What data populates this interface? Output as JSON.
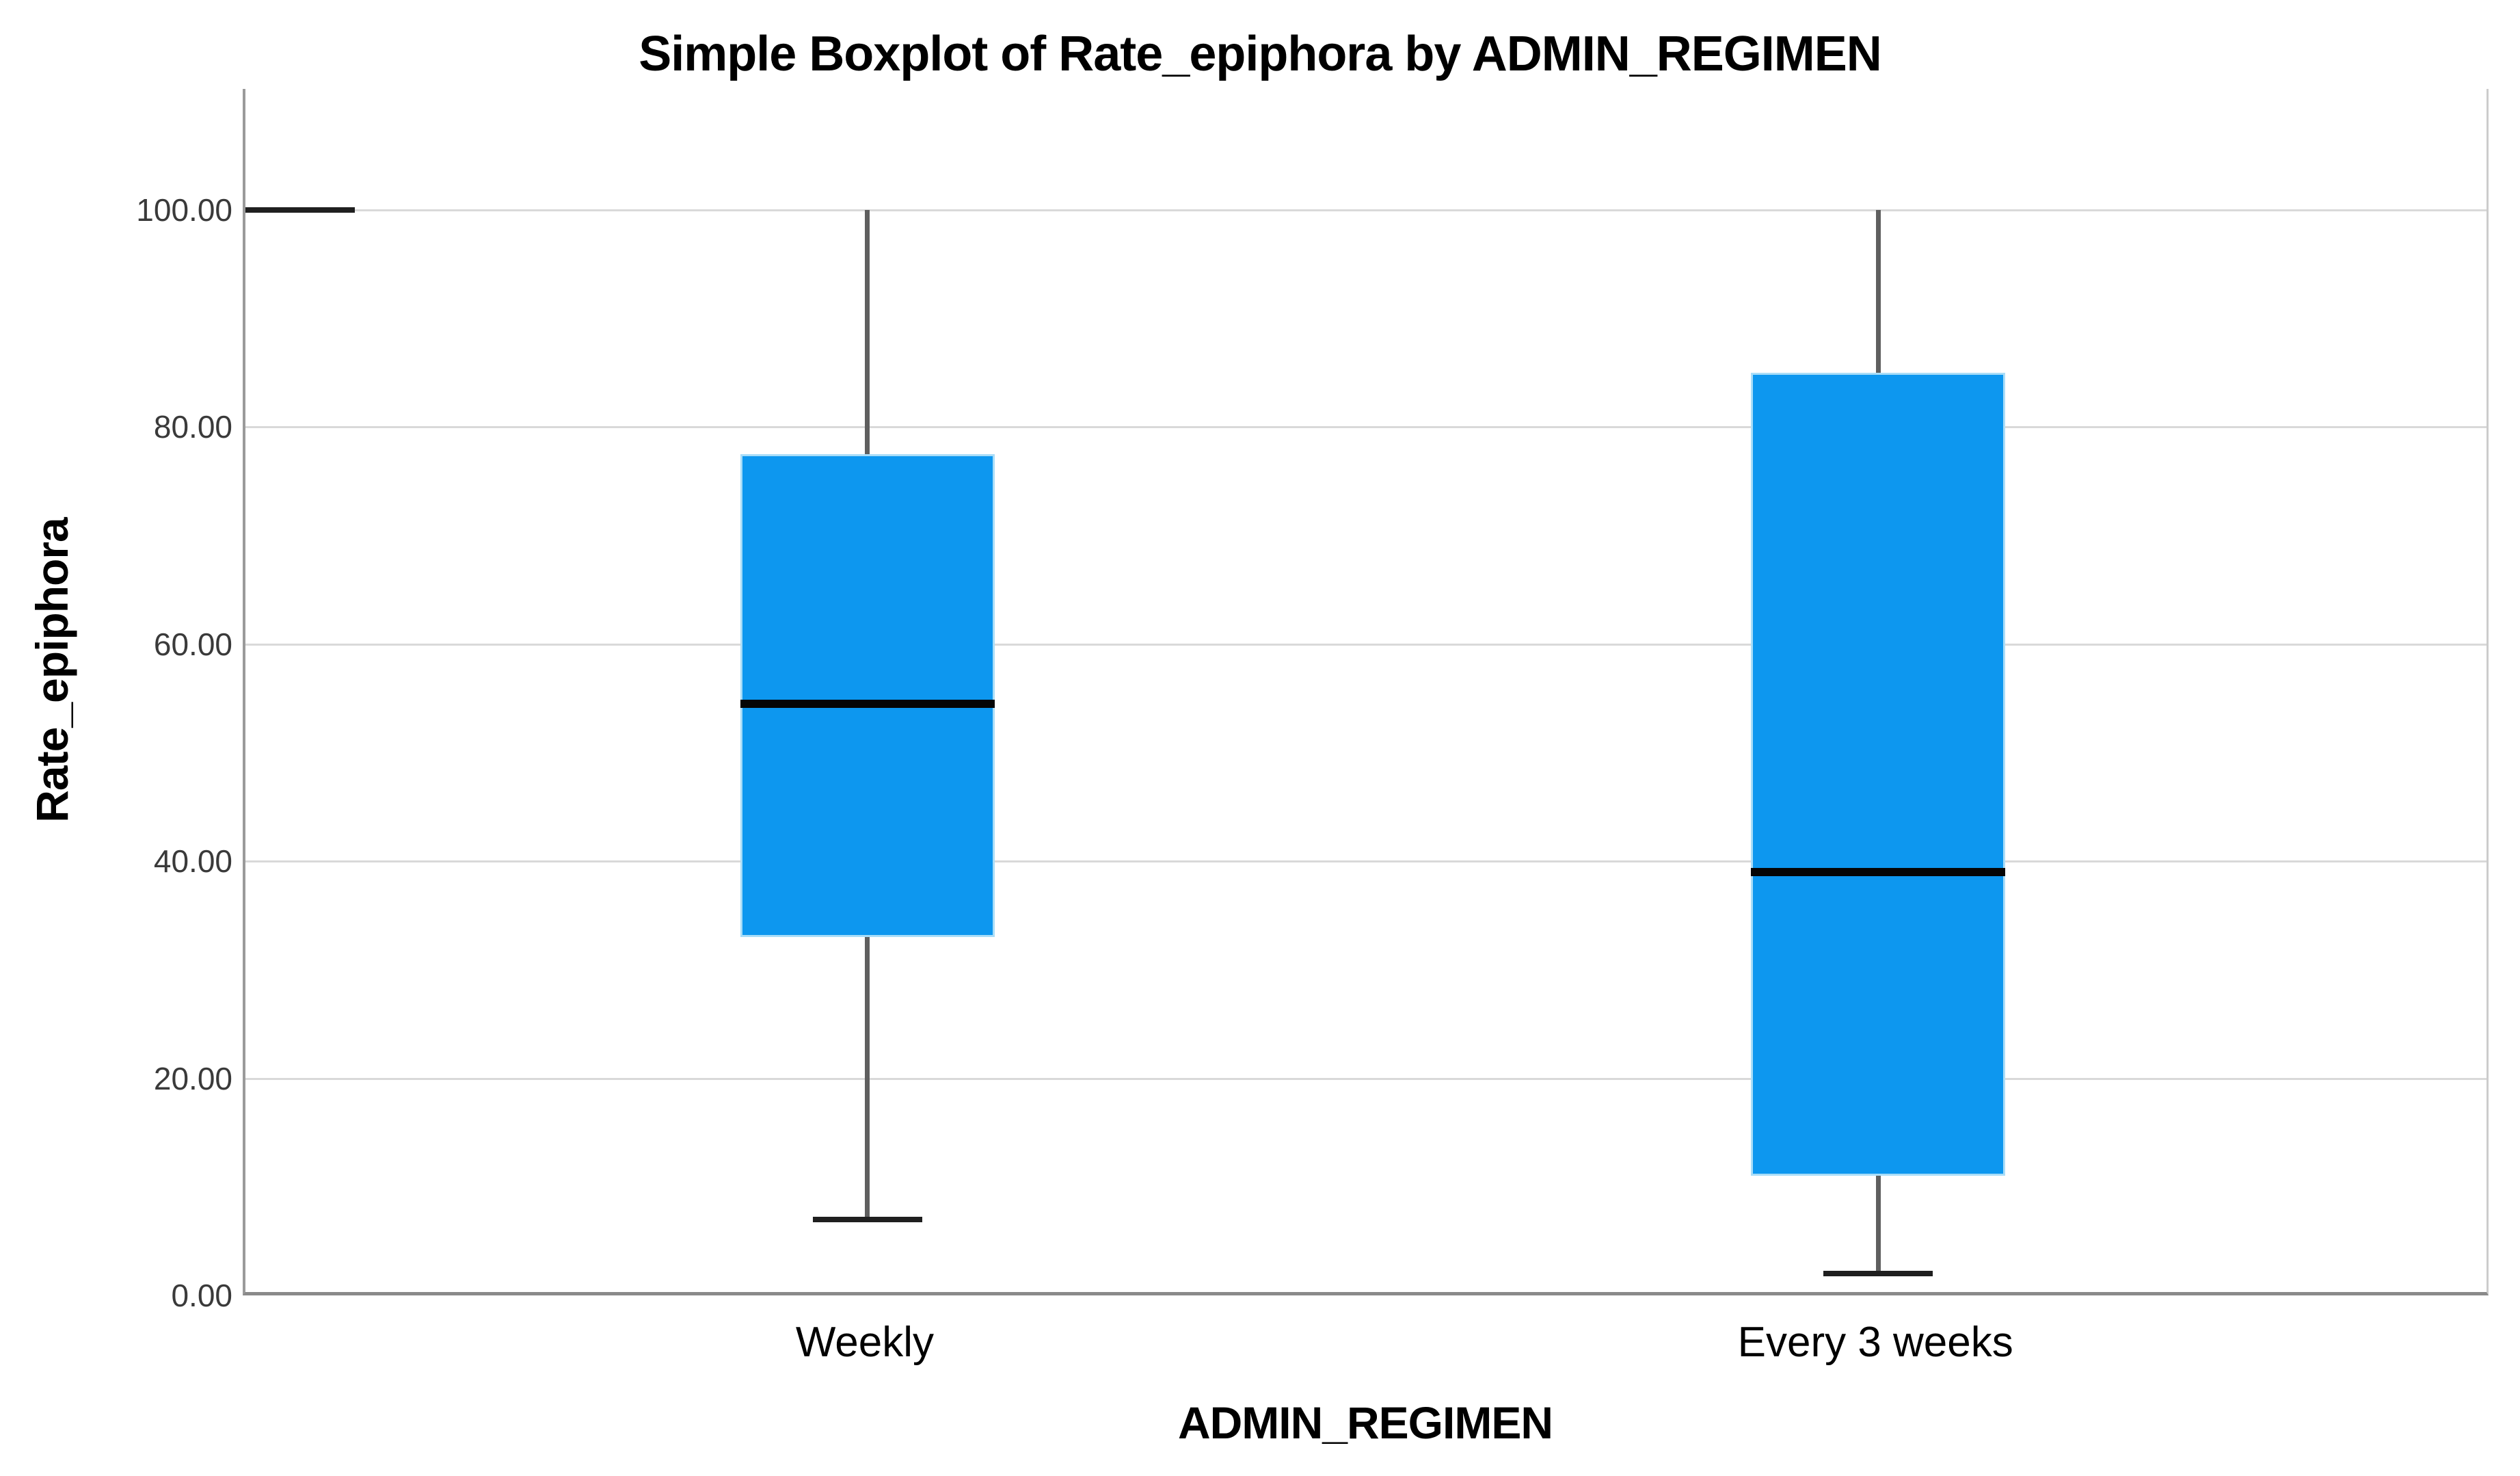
{
  "chart_data": {
    "type": "boxplot",
    "title": "Simple Boxplot of Rate_epiphora by ADMIN_REGIMEN",
    "xlabel": "ADMIN_REGIMEN",
    "ylabel": "Rate_epiphora",
    "ylim": [
      0,
      100
    ],
    "grid": "horizontal-only",
    "legend": "none",
    "yticks": [
      {
        "value": 0,
        "label": "0.00"
      },
      {
        "value": 20,
        "label": "20.00"
      },
      {
        "value": 40,
        "label": "40.00"
      },
      {
        "value": 60,
        "label": "60.00"
      },
      {
        "value": 80,
        "label": "80.00"
      },
      {
        "value": 100,
        "label": "100.00"
      }
    ],
    "categories": [
      "Weekly",
      "Every 3 weeks"
    ],
    "series": [
      {
        "category": "Weekly",
        "whisker_low": 7,
        "q1": 33,
        "median": 54.5,
        "q3": 77.5,
        "whisker_high": 100
      },
      {
        "category": "Every 3 weeks",
        "whisker_low": 2,
        "q1": 11,
        "median": 39,
        "q3": 85,
        "whisker_high": 100
      }
    ],
    "colors": {
      "box_fill": "#0D97EF",
      "box_border": "#A9DDF8",
      "median_line": "#050505",
      "whisker_line": "#5f5f5f",
      "whisker_cap": "#1f1f1f",
      "gridline": "#d9d9d9",
      "axis_line": "#8a8a8a",
      "tick_text": "#3a3a3a",
      "title_text": "#000000"
    }
  }
}
